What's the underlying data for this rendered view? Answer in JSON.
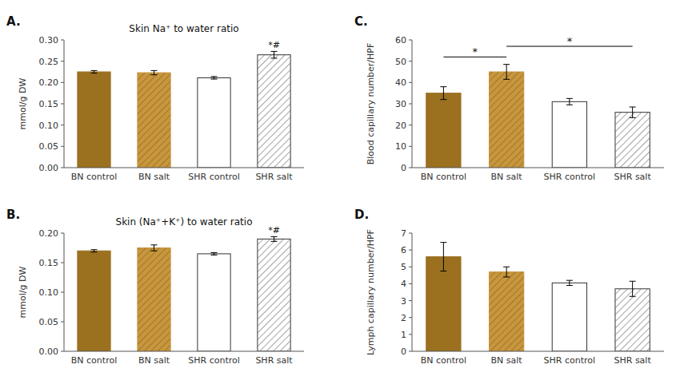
{
  "chart_data": [
    {
      "type": "bar",
      "panel_label": "A.",
      "title": "Skin Na⁺ to water ratio",
      "ylabel": "mmol/g DW",
      "categories": [
        "BN control",
        "BN salt",
        "SHR control",
        "SHR salt"
      ],
      "values": [
        0.225,
        0.223,
        0.211,
        0.265
      ],
      "errors": [
        0.003,
        0.005,
        0.003,
        0.008
      ],
      "colors": [
        "#9B7120",
        "#C8963C",
        "#FFFFFF",
        "#FFFFFF"
      ],
      "ylim": [
        0,
        0.3
      ],
      "yticks": [
        {
          "value": 0,
          "label": "0.00"
        },
        0.05,
        {
          "value": 0.1,
          "label": "0.10"
        },
        0.15,
        {
          "value": 0.2,
          "label": "0.20"
        },
        0.25,
        {
          "value": 0.3,
          "label": "0.30"
        }
      ],
      "grid": false,
      "annotations": [
        {
          "text": "*#",
          "category": "SHR salt"
        }
      ]
    },
    {
      "type": "bar",
      "panel_label": "B.",
      "title": "Skin (Na⁺+K⁺) to water ratio",
      "ylabel": "mmol/g DW",
      "categories": [
        "BN control",
        "BN salt",
        "SHR control",
        "SHR salt"
      ],
      "values": [
        0.17,
        0.175,
        0.165,
        0.19
      ],
      "errors": [
        0.002,
        0.005,
        0.002,
        0.004
      ],
      "colors": [
        "#9B7120",
        "#C8963C",
        "#FFFFFF",
        "#FFFFFF"
      ],
      "ylim": [
        0,
        0.2
      ],
      "yticks": [
        {
          "value": 0,
          "label": "0.00"
        },
        0.05,
        {
          "value": 0.1,
          "label": "0.10"
        },
        0.15,
        {
          "value": 0.2,
          "label": "0.20"
        }
      ],
      "grid": false,
      "annotations": [
        {
          "text": "*#",
          "category": "SHR salt"
        }
      ]
    },
    {
      "type": "bar",
      "panel_label": "C.",
      "ylabel": "Blood capillary number/HPF",
      "categories": [
        "BN control",
        "BN salt",
        "SHR control",
        "SHR salt"
      ],
      "values": [
        35.0,
        45.0,
        31.0,
        26.0
      ],
      "errors": [
        3.0,
        3.5,
        1.5,
        2.5
      ],
      "colors": [
        "#9B7120",
        "#C8963C",
        "#FFFFFF",
        "#FFFFFF"
      ],
      "ylim": [
        0,
        60
      ],
      "yticks": [
        0,
        10,
        20,
        30,
        40,
        50,
        60
      ],
      "grid": false,
      "annotations": [
        {
          "text": "*",
          "from": "BN control",
          "to": "BN salt",
          "y": 52
        },
        {
          "text": "*",
          "from": "BN salt",
          "to": "SHR salt",
          "y": 57
        }
      ]
    },
    {
      "type": "bar",
      "panel_label": "D.",
      "ylabel": "Lymph capillary number/HPF",
      "categories": [
        "BN control",
        "BN salt",
        "SHR control",
        "SHR salt"
      ],
      "values": [
        5.6,
        4.7,
        4.05,
        3.7
      ],
      "errors": [
        0.85,
        0.3,
        0.15,
        0.45
      ],
      "colors": [
        "#9B7120",
        "#C8963C",
        "#FFFFFF",
        "#FFFFFF"
      ],
      "ylim": [
        0,
        7
      ],
      "yticks": [
        0,
        1,
        2,
        3,
        4,
        5,
        6,
        7
      ],
      "grid": false
    }
  ]
}
